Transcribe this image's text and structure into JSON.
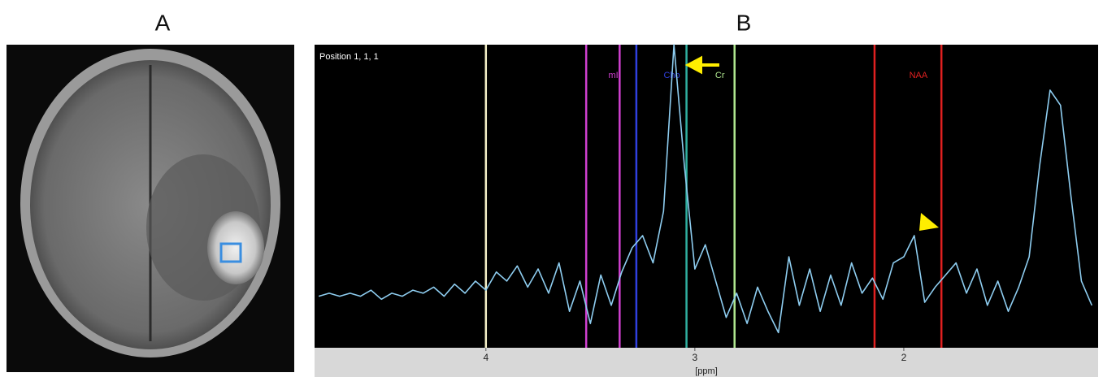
{
  "panels": [
    {
      "label": "A"
    },
    {
      "label": "B"
    }
  ],
  "chart_data": {
    "type": "line",
    "annotation": "Position  1, 1, 1",
    "xlabel": "[ppm]",
    "xlim": [
      4.82,
      1.07
    ],
    "xticks": [
      4,
      3,
      2
    ],
    "ylim": [
      0,
      100
    ],
    "x": [
      4.8,
      4.75,
      4.7,
      4.65,
      4.6,
      4.55,
      4.5,
      4.45,
      4.4,
      4.35,
      4.3,
      4.25,
      4.2,
      4.15,
      4.1,
      4.05,
      4.0,
      3.95,
      3.9,
      3.85,
      3.8,
      3.75,
      3.7,
      3.65,
      3.6,
      3.55,
      3.5,
      3.45,
      3.4,
      3.35,
      3.3,
      3.25,
      3.2,
      3.15,
      3.1,
      3.05,
      3.0,
      2.95,
      2.9,
      2.85,
      2.8,
      2.75,
      2.7,
      2.65,
      2.6,
      2.55,
      2.5,
      2.45,
      2.4,
      2.35,
      2.3,
      2.25,
      2.2,
      2.15,
      2.1,
      2.05,
      2.0,
      1.95,
      1.9,
      1.85,
      1.8,
      1.75,
      1.7,
      1.65,
      1.6,
      1.55,
      1.5,
      1.45,
      1.4,
      1.35,
      1.3,
      1.25,
      1.2,
      1.15,
      1.1
    ],
    "series": [
      {
        "color": "#8ecdf0",
        "values": [
          17,
          18,
          17,
          18,
          17,
          19,
          16,
          18,
          17,
          19,
          18,
          20,
          17,
          21,
          18,
          22,
          19,
          25,
          22,
          27,
          20,
          26,
          18,
          28,
          12,
          22,
          8,
          24,
          14,
          25,
          33,
          37,
          28,
          45,
          100,
          60,
          26,
          34,
          22,
          10,
          18,
          8,
          20,
          12,
          5,
          30,
          14,
          26,
          12,
          24,
          14,
          28,
          18,
          23,
          16,
          28,
          30,
          37,
          15,
          20,
          24,
          28,
          18,
          26,
          14,
          22,
          12,
          20,
          30,
          60,
          85,
          80,
          50,
          22,
          14
        ]
      }
    ],
    "markers": [
      {
        "x": 4.0,
        "color": "#f4f0c8"
      },
      {
        "x": 3.52,
        "color": "#d040d0"
      },
      {
        "x": 3.36,
        "color": "#d040d0"
      },
      {
        "x": 3.28,
        "color": "#3040e0"
      },
      {
        "x": 3.04,
        "color": "#30b0a0"
      },
      {
        "x": 2.81,
        "color": "#b0e890"
      },
      {
        "x": 2.14,
        "color": "#e02020"
      },
      {
        "x": 1.82,
        "color": "#e02020"
      }
    ],
    "marker_labels": [
      {
        "text": "mI",
        "x": 3.39,
        "color": "#d040d0"
      },
      {
        "text": "Cho",
        "x": 3.11,
        "color": "#3040e0"
      },
      {
        "text": "Cr",
        "x": 2.88,
        "color": "#b0e890"
      },
      {
        "text": "NAA",
        "x": 1.93,
        "color": "#e02020"
      }
    ]
  }
}
